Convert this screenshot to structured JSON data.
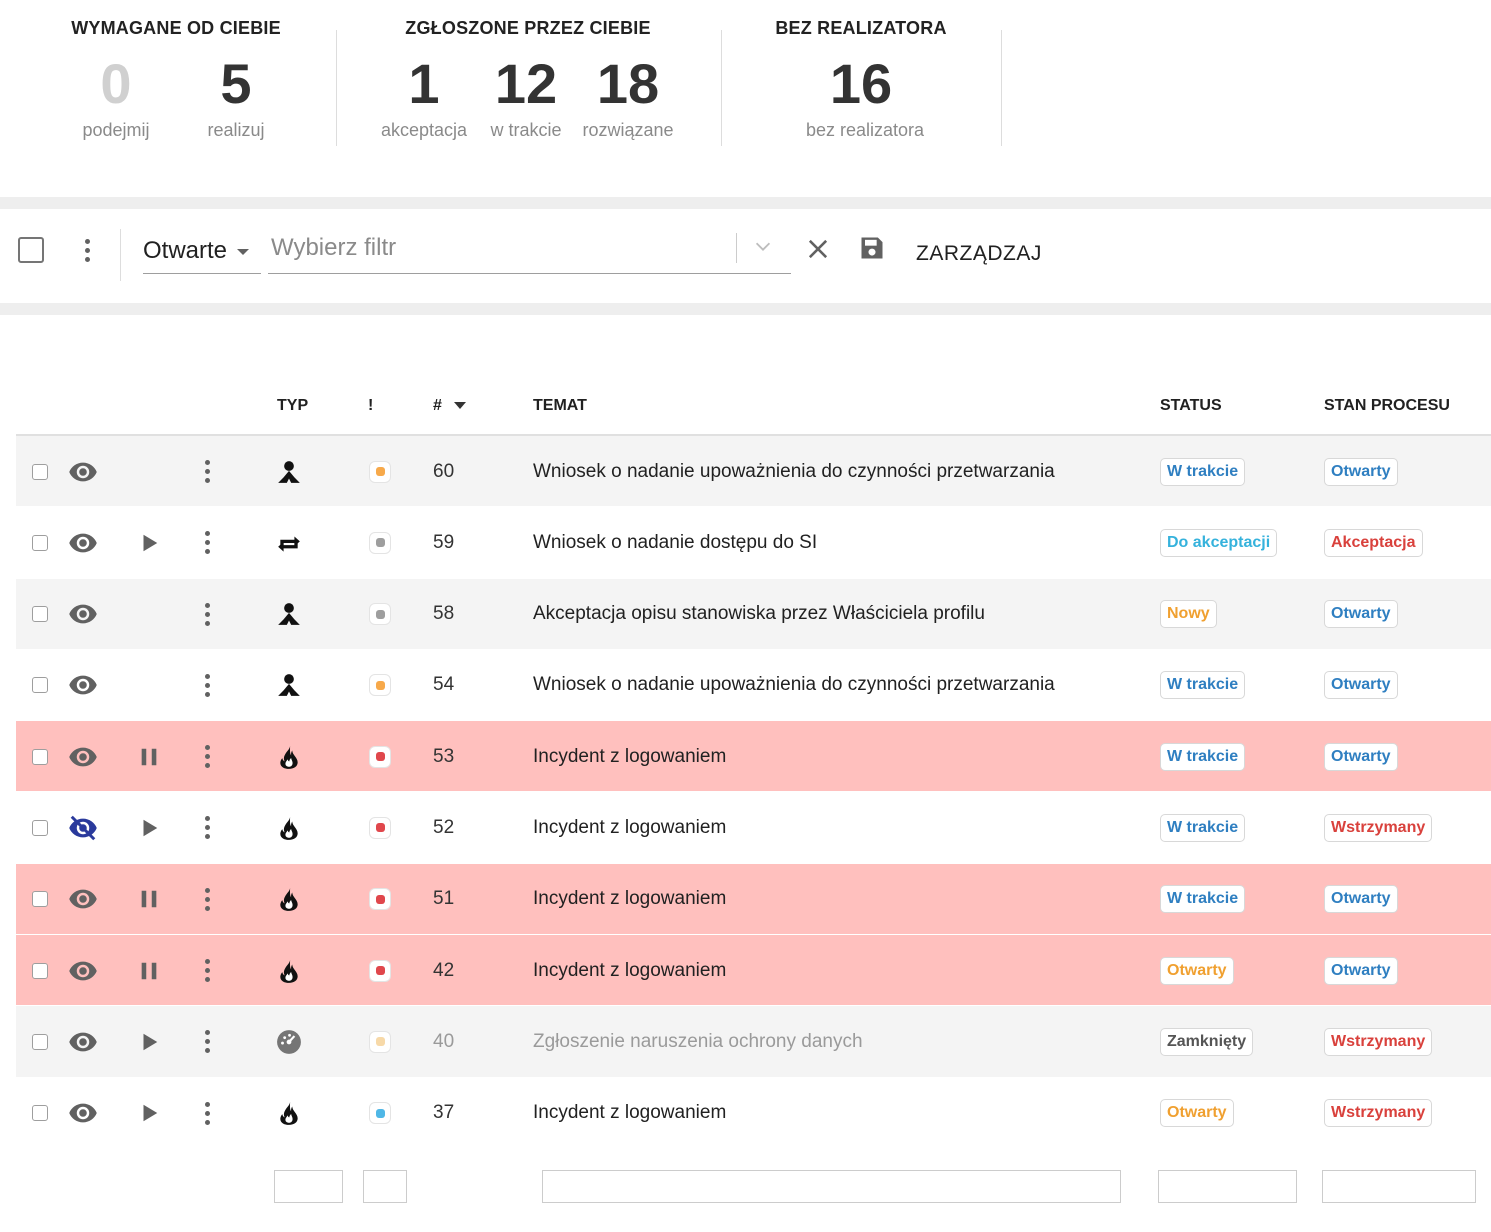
{
  "summary": {
    "required": {
      "title": "WYMAGANE OD CIEBIE",
      "items": [
        {
          "value": "0",
          "label": "podejmij"
        },
        {
          "value": "5",
          "label": "realizuj"
        }
      ]
    },
    "reported": {
      "title": "ZGŁOSZONE PRZEZ CIEBIE",
      "items": [
        {
          "value": "1",
          "label": "akceptacja"
        },
        {
          "value": "12",
          "label": "w trakcie"
        },
        {
          "value": "18",
          "label": "rozwiązane"
        }
      ]
    },
    "unassigned": {
      "title": "BEZ REALIZATORA",
      "items": [
        {
          "value": "16",
          "label": "bez realizatora"
        }
      ]
    }
  },
  "toolbar": {
    "view_select": "Otwarte",
    "filter_placeholder": "Wybierz filtr",
    "manage_label": "ZARZĄDZAJ"
  },
  "table": {
    "columns": {
      "type": "TYP",
      "priority": "!",
      "id": "#",
      "subject": "TEMAT",
      "status": "STATUS",
      "process": "STAN PROCESU"
    },
    "rows": [
      {
        "id": "60",
        "subject": "Wniosek o nadanie upoważnienia do czynności przetwarzania",
        "type_icon": "person-icon",
        "priority_color": "#f7a94a",
        "visibility": "visible",
        "action": "none",
        "status": "W trakcie",
        "status_color": "#2f7fc1",
        "process": "Otwarty",
        "process_color": "#2f7fc1",
        "style": "alt"
      },
      {
        "id": "59",
        "subject": "Wniosek o nadanie dostępu do SI",
        "type_icon": "repeat-icon",
        "priority_color": "#9e9e9e",
        "visibility": "visible",
        "action": "play",
        "status": "Do akceptacji",
        "status_color": "#35b2dc",
        "process": "Akceptacja",
        "process_color": "#d9413c",
        "style": "plain"
      },
      {
        "id": "58",
        "subject": "Akceptacja opisu stanowiska przez Właściciela profilu",
        "type_icon": "person-icon",
        "priority_color": "#9e9e9e",
        "visibility": "visible",
        "action": "none",
        "status": "Nowy",
        "status_color": "#f0a030",
        "process": "Otwarty",
        "process_color": "#2f7fc1",
        "style": "alt"
      },
      {
        "id": "54",
        "subject": "Wniosek o nadanie upoważnienia do czynności przetwarzania",
        "type_icon": "person-icon",
        "priority_color": "#f7a94a",
        "visibility": "visible",
        "action": "none",
        "status": "W trakcie",
        "status_color": "#2f7fc1",
        "process": "Otwarty",
        "process_color": "#2f7fc1",
        "style": "plain"
      },
      {
        "id": "53",
        "subject": "Incydent z logowaniem",
        "type_icon": "fire-icon",
        "priority_color": "#e0474c",
        "visibility": "visible",
        "action": "pause",
        "status": "W trakcie",
        "status_color": "#2f7fc1",
        "process": "Otwarty",
        "process_color": "#2f7fc1",
        "style": "alert"
      },
      {
        "id": "52",
        "subject": "Incydent z logowaniem",
        "type_icon": "fire-icon",
        "priority_color": "#e0474c",
        "visibility": "hidden",
        "action": "play",
        "status": "W trakcie",
        "status_color": "#2f7fc1",
        "process": "Wstrzymany",
        "process_color": "#d9413c",
        "style": "plain"
      },
      {
        "id": "51",
        "subject": "Incydent z logowaniem",
        "type_icon": "fire-icon",
        "priority_color": "#e0474c",
        "visibility": "visible",
        "action": "pause",
        "status": "W trakcie",
        "status_color": "#2f7fc1",
        "process": "Otwarty",
        "process_color": "#2f7fc1",
        "style": "alert"
      },
      {
        "id": "42",
        "subject": "Incydent z logowaniem",
        "type_icon": "fire-icon",
        "priority_color": "#e0474c",
        "visibility": "visible",
        "action": "pause",
        "status": "Otwarty",
        "status_color": "#f0a030",
        "process": "Otwarty",
        "process_color": "#2f7fc1",
        "style": "alert"
      },
      {
        "id": "40",
        "subject": "Zgłoszenie naruszenia ochrony danych",
        "type_icon": "gauge-icon",
        "priority_color": "#f7d9a8",
        "visibility": "visible",
        "action": "play",
        "status": "Zamknięty",
        "status_color": "#555555",
        "process": "Wstrzymany",
        "process_color": "#d9413c",
        "style": "alt dim"
      },
      {
        "id": "37",
        "subject": "Incydent z logowaniem",
        "type_icon": "fire-icon",
        "priority_color": "#4fb7e6",
        "visibility": "visible",
        "action": "play",
        "status": "Otwarty",
        "status_color": "#f0a030",
        "process": "Wstrzymany",
        "process_color": "#d9413c",
        "style": "plain"
      }
    ]
  }
}
